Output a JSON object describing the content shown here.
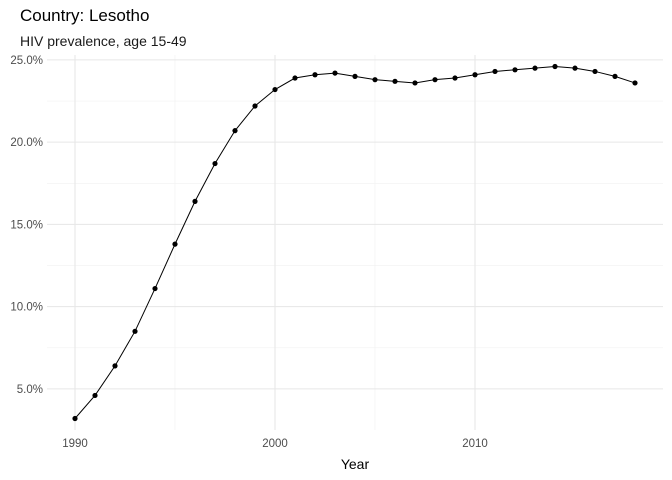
{
  "chart_data": {
    "type": "line",
    "title": "Country: Lesotho",
    "subtitle": "HIV prevalence, age 15-49",
    "xlabel": "Year",
    "ylabel": "",
    "xlim": [
      1988.6,
      2019.4
    ],
    "ylim": [
      2.5,
      25.3
    ],
    "x_ticks": [
      1990,
      2000,
      2010
    ],
    "x_tick_labels": [
      "1990",
      "2000",
      "2010"
    ],
    "y_ticks": [
      5,
      10,
      15,
      20,
      25
    ],
    "y_tick_labels": [
      "5.0%",
      "10.0%",
      "15.0%",
      "20.0%",
      "25.0%"
    ],
    "grid": true,
    "legend": "none",
    "series": [
      {
        "x": [
          1990,
          1991,
          1992,
          1993,
          1994,
          1995,
          1996,
          1997,
          1998,
          1999,
          2000,
          2001,
          2002,
          2003,
          2004,
          2005,
          2006,
          2007,
          2008,
          2009,
          2010,
          2011,
          2012,
          2013,
          2014,
          2015,
          2016,
          2017,
          2018
        ],
        "values": [
          3.2,
          4.6,
          6.4,
          8.5,
          11.1,
          13.8,
          16.4,
          18.7,
          20.7,
          22.2,
          23.2,
          23.9,
          24.1,
          24.2,
          24.0,
          23.8,
          23.7,
          23.6,
          23.8,
          23.9,
          24.1,
          24.3,
          24.4,
          24.5,
          24.6,
          24.5,
          24.3,
          24.0,
          23.6
        ],
        "color": "#000000"
      }
    ]
  }
}
